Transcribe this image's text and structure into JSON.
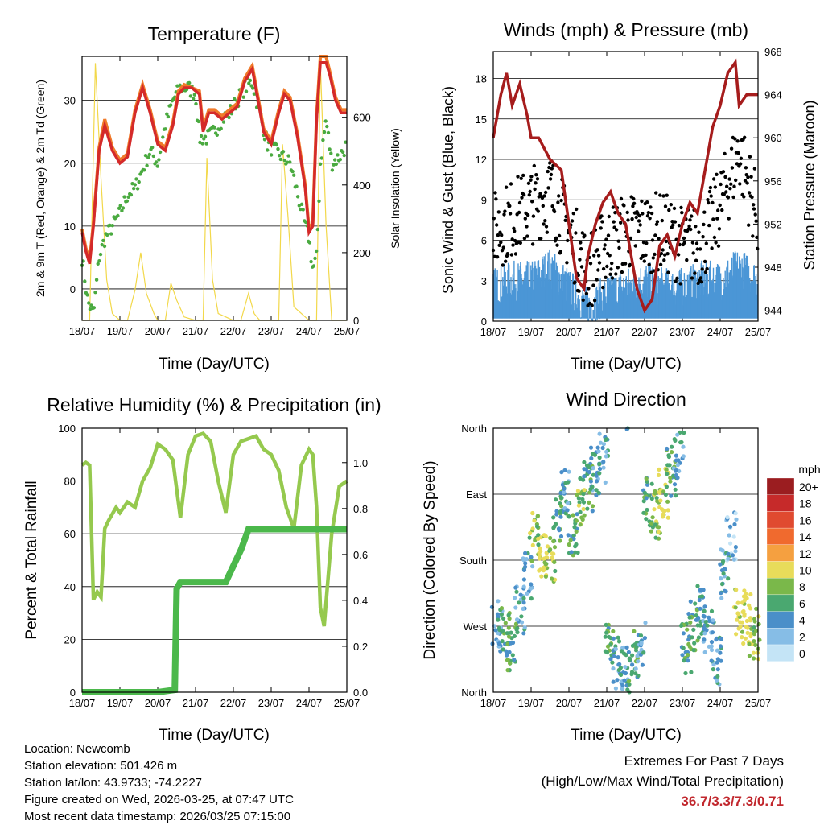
{
  "x_ticks": [
    "18/07",
    "19/07",
    "20/07",
    "21/07",
    "22/07",
    "23/07",
    "24/07",
    "25/07"
  ],
  "colors": {
    "t2m": "#d42a2a",
    "t9m": "#f07a2a",
    "td": "#4aaa40",
    "solar": "#f2d84a",
    "sonic": "#4b96d6",
    "gust": "#000000",
    "pressure": "#a61c1c",
    "rh": "#95c94e",
    "precip": "#4bb84b"
  },
  "chart_data": [
    {
      "type": "line",
      "title": "Temperature (F)",
      "xlabel": "Time (Day/UTC)",
      "ylabel": "2m & 9m T (Red, Orange) & 2m Td (Green)",
      "ylabel_right": "Solar Insolation (Yellow)",
      "ylim": [
        -5,
        37
      ],
      "yticks": [
        0,
        10,
        20,
        30
      ],
      "ylim_right": [
        0,
        780
      ],
      "yticks_right": [
        0,
        200,
        400,
        600
      ],
      "xlim": [
        0,
        7
      ],
      "series": [
        {
          "name": "2m T",
          "x": [
            0,
            0.1,
            0.2,
            0.3,
            0.45,
            0.6,
            0.8,
            1.0,
            1.2,
            1.4,
            1.6,
            1.8,
            2.0,
            2.2,
            2.4,
            2.55,
            2.7,
            2.9,
            3.1,
            3.2,
            3.35,
            3.5,
            3.7,
            3.9,
            4.1,
            4.3,
            4.5,
            4.65,
            4.8,
            5.0,
            5.2,
            5.35,
            5.5,
            5.7,
            5.9,
            6.0,
            6.1,
            6.2,
            6.3,
            6.45,
            6.55,
            6.7,
            6.85,
            7.0
          ],
          "values": [
            9,
            6,
            4,
            10,
            22,
            26,
            22,
            20,
            21,
            28,
            32,
            28,
            23,
            22,
            26,
            31,
            32,
            32,
            31,
            25,
            28,
            28,
            27,
            28,
            29,
            33,
            35,
            30,
            25,
            23,
            28,
            31,
            30,
            24,
            16,
            9,
            10,
            27,
            36,
            36,
            34,
            30,
            28,
            28
          ]
        },
        {
          "name": "9m T",
          "x": [
            0,
            0.1,
            0.2,
            0.3,
            0.45,
            0.6,
            0.8,
            1.0,
            1.2,
            1.4,
            1.6,
            1.8,
            2.0,
            2.2,
            2.4,
            2.55,
            2.7,
            2.9,
            3.1,
            3.2,
            3.35,
            3.5,
            3.7,
            3.9,
            4.1,
            4.3,
            4.5,
            4.65,
            4.8,
            5.0,
            5.2,
            5.35,
            5.5,
            5.7,
            5.9,
            6.0,
            6.1,
            6.2,
            6.3,
            6.45,
            6.55,
            6.7,
            6.85,
            7.0
          ],
          "values": [
            9.5,
            6.5,
            4.5,
            10.5,
            22.5,
            27,
            22.5,
            20.5,
            21.5,
            28.5,
            32.5,
            28.5,
            23.5,
            22.5,
            26.5,
            31.5,
            32.5,
            32,
            31.5,
            25.5,
            28.5,
            28.5,
            27.5,
            28.5,
            29.5,
            33.5,
            35.5,
            30.5,
            25.5,
            23.5,
            28.5,
            31.5,
            30.5,
            24.5,
            16.5,
            9.5,
            10.5,
            27.5,
            37,
            37,
            34.5,
            30.5,
            28.5,
            28.5
          ]
        },
        {
          "name": "2m Td",
          "x": [
            0,
            0.15,
            0.3,
            0.45,
            0.6,
            0.8,
            1.0,
            1.2,
            1.4,
            1.6,
            1.8,
            2.0,
            2.2,
            2.4,
            2.6,
            2.8,
            3.0,
            3.1,
            3.3,
            3.5,
            3.7,
            3.9,
            4.1,
            4.3,
            4.5,
            4.7,
            4.9,
            5.1,
            5.3,
            5.5,
            5.7,
            5.9,
            6.0,
            6.1,
            6.2,
            6.3,
            6.45,
            6.6,
            6.8,
            7.0
          ],
          "values": [
            5,
            -2,
            -4,
            5,
            8,
            10,
            12,
            15,
            16,
            19,
            22,
            20,
            26,
            30,
            32,
            32,
            31,
            24,
            24,
            25,
            27,
            28,
            30,
            32,
            33,
            28,
            23,
            22,
            21,
            20,
            15,
            10,
            8,
            3,
            5,
            20,
            27,
            20,
            21,
            23
          ]
        },
        {
          "name": "Solar Insolation",
          "axis": "right",
          "x": [
            0,
            0.2,
            0.35,
            0.5,
            0.65,
            0.8,
            1.0,
            1.2,
            1.4,
            1.55,
            1.7,
            1.9,
            2.0,
            2.2,
            2.35,
            2.5,
            2.7,
            3.0,
            3.2,
            3.3,
            3.45,
            3.6,
            4.0,
            4.2,
            4.4,
            4.55,
            4.7,
            5.0,
            5.2,
            5.3,
            5.45,
            5.6,
            6.0,
            6.2,
            6.3,
            6.45,
            6.6,
            6.8,
            7.0
          ],
          "values": [
            0,
            0,
            760,
            420,
            120,
            20,
            0,
            0,
            90,
            200,
            80,
            20,
            0,
            0,
            110,
            60,
            10,
            0,
            0,
            480,
            120,
            20,
            0,
            0,
            80,
            20,
            0,
            0,
            0,
            520,
            300,
            40,
            0,
            0,
            760,
            280,
            0,
            0,
            0
          ]
        }
      ]
    },
    {
      "type": "line",
      "title": "Winds (mph) & Pressure (mb)",
      "xlabel": "Time (Day/UTC)",
      "ylabel": "Sonic Wind & Gust (Blue, Black)",
      "ylabel_right": "Station Pressure (Maroon)",
      "ylim": [
        0,
        20
      ],
      "yticks": [
        0,
        3,
        6,
        9,
        12,
        15,
        18
      ],
      "ylim_right": [
        943,
        968
      ],
      "yticks_right": [
        944,
        948,
        952,
        956,
        960,
        964,
        968
      ],
      "xlim": [
        0,
        7
      ],
      "series": [
        {
          "name": "Station Pressure",
          "axis": "right",
          "x": [
            0,
            0.2,
            0.35,
            0.5,
            0.7,
            0.9,
            1.0,
            1.2,
            1.5,
            1.8,
            2.0,
            2.2,
            2.4,
            2.5,
            2.7,
            2.9,
            3.1,
            3.3,
            3.5,
            3.8,
            4.0,
            4.2,
            4.4,
            4.6,
            4.8,
            5.0,
            5.2,
            5.4,
            5.6,
            5.8,
            6.0,
            6.2,
            6.4,
            6.5,
            6.7,
            6.9,
            7.0
          ],
          "values": [
            960,
            964,
            966,
            963,
            965,
            962,
            960,
            960,
            958,
            957,
            952,
            947,
            946,
            949,
            952,
            954,
            955,
            953,
            952,
            946,
            944,
            945,
            950,
            951,
            949,
            952,
            954,
            953,
            957,
            961,
            963,
            966,
            967,
            963,
            964,
            964,
            964
          ]
        },
        {
          "name": "Sonic Wind",
          "x": [
            0,
            0.5,
            1.0,
            1.5,
            2.0,
            2.5,
            3.0,
            3.5,
            4.0,
            4.5,
            5.0,
            5.5,
            6.0,
            6.5,
            7.0
          ],
          "values": [
            2.5,
            3,
            3,
            4,
            2.5,
            1,
            2,
            2.5,
            3,
            2.5,
            2.5,
            3,
            3,
            4,
            3
          ]
        },
        {
          "name": "Gust",
          "x": [
            0,
            0.5,
            1.0,
            1.5,
            2.0,
            2.5,
            3.0,
            3.5,
            4.0,
            4.5,
            5.0,
            5.5,
            6.0,
            6.5,
            7.0
          ],
          "values": [
            6,
            7,
            8,
            9,
            6,
            3,
            5,
            6,
            6,
            6,
            5,
            5,
            8,
            12,
            7
          ]
        }
      ]
    },
    {
      "type": "line",
      "title": "Relative Humidity (%) & Precipitation (in)",
      "xlabel": "Time (Day/UTC)",
      "ylabel": "Percent & Total Rainfall",
      "ylim": [
        0,
        100
      ],
      "yticks": [
        0,
        20,
        40,
        60,
        80,
        100
      ],
      "ylim_right": [
        0,
        1.15
      ],
      "yticks_right": [
        "0.0",
        "0.2",
        "0.4",
        "0.6",
        "0.8",
        "1.0"
      ],
      "xlim": [
        0,
        7
      ],
      "series": [
        {
          "name": "Relative Humidity",
          "x": [
            0,
            0.1,
            0.2,
            0.3,
            0.4,
            0.5,
            0.6,
            0.7,
            0.9,
            1.0,
            1.2,
            1.4,
            1.6,
            1.8,
            2.0,
            2.2,
            2.4,
            2.6,
            2.8,
            3.0,
            3.2,
            3.4,
            3.6,
            3.8,
            4.0,
            4.2,
            4.4,
            4.6,
            4.8,
            5.0,
            5.2,
            5.4,
            5.6,
            5.8,
            6.0,
            6.1,
            6.2,
            6.3,
            6.4,
            6.6,
            6.8,
            7.0
          ],
          "values": [
            86,
            87,
            86,
            35,
            38,
            36,
            62,
            65,
            70,
            68,
            72,
            70,
            80,
            85,
            94,
            92,
            88,
            66,
            90,
            97,
            98,
            95,
            80,
            68,
            90,
            95,
            96,
            97,
            92,
            90,
            84,
            70,
            62,
            86,
            92,
            90,
            70,
            32,
            25,
            60,
            78,
            80
          ]
        },
        {
          "name": "Total Precipitation",
          "axis": "right",
          "x": [
            0,
            1.0,
            2.0,
            2.45,
            2.5,
            2.6,
            2.8,
            3.0,
            3.3,
            3.8,
            4.0,
            4.2,
            4.4,
            4.6,
            5.0,
            6.0,
            7.0
          ],
          "values": [
            0,
            0,
            0,
            0.01,
            0.45,
            0.48,
            0.48,
            0.48,
            0.48,
            0.48,
            0.55,
            0.62,
            0.71,
            0.71,
            0.71,
            0.71,
            0.71
          ]
        }
      ]
    },
    {
      "type": "scatter",
      "title": "Wind Direction",
      "xlabel": "Time (Day/UTC)",
      "ylabel": "Direction (Colored By Speed)",
      "ylim": [
        0,
        360
      ],
      "yticks": [
        "North",
        "East",
        "South",
        "West",
        "North"
      ],
      "xlim": [
        0,
        7
      ],
      "colorbar": {
        "unit": "mph",
        "levels": [
          "20+",
          "18",
          "16",
          "14",
          "12",
          "10",
          "8",
          "6",
          "4",
          "2",
          "0"
        ],
        "colors": [
          "#9b1d20",
          "#c62a2a",
          "#e04a30",
          "#f06a2e",
          "#f5a040",
          "#e8dc5a",
          "#7ab84a",
          "#4aa870",
          "#4a8fc9",
          "#86bde6",
          "#c4e4f6"
        ]
      },
      "series": [
        {
          "name": "Wind Direction",
          "x": [
            0.1,
            0.3,
            0.5,
            0.7,
            0.9,
            1.1,
            1.3,
            1.5,
            1.7,
            1.9,
            2.1,
            2.3,
            2.5,
            2.7,
            2.9,
            3.1,
            3.3,
            3.5,
            3.7,
            3.9,
            4.1,
            4.3,
            4.5,
            4.7,
            4.9,
            5.1,
            5.3,
            5.5,
            5.7,
            5.9,
            6.1,
            6.3,
            6.5,
            6.7,
            6.9
          ],
          "values": [
            270,
            280,
            300,
            250,
            200,
            150,
            170,
            180,
            120,
            90,
            140,
            100,
            80,
            60,
            40,
            300,
            320,
            330,
            310,
            300,
            100,
            120,
            90,
            60,
            40,
            300,
            270,
            250,
            280,
            320,
            200,
            150,
            250,
            260,
            280
          ],
          "speed": [
            2,
            3,
            3,
            2,
            2,
            4,
            5,
            4,
            3,
            2,
            3,
            4,
            3,
            2,
            2,
            3,
            2,
            2,
            3,
            2,
            3,
            4,
            5,
            3,
            2,
            3,
            3,
            2,
            2,
            2,
            2,
            1,
            5,
            6,
            4
          ]
        }
      ]
    }
  ],
  "footer": {
    "location": "Location: Newcomb",
    "elevation": "Station elevation: 501.426 m",
    "latlon": "Station lat/lon: 43.9733; -74.2227",
    "created": "Figure created on Wed, 2026-03-25, at 07:47 UTC",
    "recent": "Most recent data timestamp: 2026/03/25 07:15:00"
  },
  "extremes": {
    "title": "Extremes For Past 7 Days",
    "subtitle": "(High/Low/Max Wind/Total Precipitation)",
    "value": "36.7/3.3/7.3/0.71"
  }
}
